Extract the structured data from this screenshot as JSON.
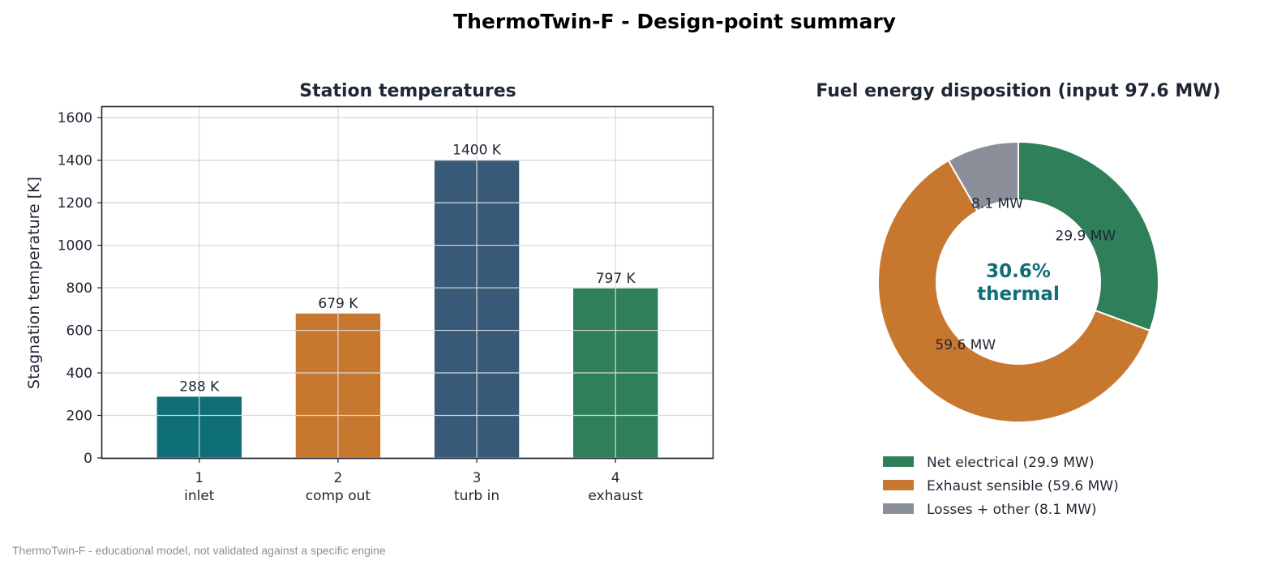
{
  "figure": {
    "title": "ThermoTwin-F  -  Design-point summary",
    "footnote": "ThermoTwin-F - educational model, not validated against a specific engine"
  },
  "chart_data": [
    {
      "type": "bar",
      "title": "Station temperatures",
      "xlabel": "",
      "ylabel": "Stagnation temperature [K]",
      "ylim": [
        0,
        1650
      ],
      "yticks": [
        0,
        200,
        400,
        600,
        800,
        1000,
        1200,
        1400,
        1600
      ],
      "grid": true,
      "categories": [
        {
          "station": "1",
          "name": "inlet"
        },
        {
          "station": "2",
          "name": "comp out"
        },
        {
          "station": "3",
          "name": "turb in"
        },
        {
          "station": "4",
          "name": "exhaust"
        }
      ],
      "values": [
        288,
        679,
        1400,
        797
      ],
      "value_labels": [
        "288 K",
        "679 K",
        "1400 K",
        "797 K"
      ],
      "colors": [
        "#0e6e78",
        "#c8772f",
        "#385a78",
        "#2e7f5a"
      ]
    },
    {
      "type": "pie",
      "subtype": "donut",
      "title": "Fuel energy disposition  (input 97.6 MW)",
      "center_label": [
        "30.6%",
        "thermal"
      ],
      "center_color": "#0e6e78",
      "legend_position": "bottom",
      "slices": [
        {
          "label": "Net electrical  (29.9 MW)",
          "value": 29.9,
          "value_label": "29.9 MW",
          "color": "#2e7f5a"
        },
        {
          "label": "Exhaust sensible  (59.6 MW)",
          "value": 59.6,
          "value_label": "59.6 MW",
          "color": "#c8772f"
        },
        {
          "label": "Losses + other  (8.1 MW)",
          "value": 8.1,
          "value_label": "8.1 MW",
          "color": "#8a8f99"
        }
      ]
    }
  ]
}
